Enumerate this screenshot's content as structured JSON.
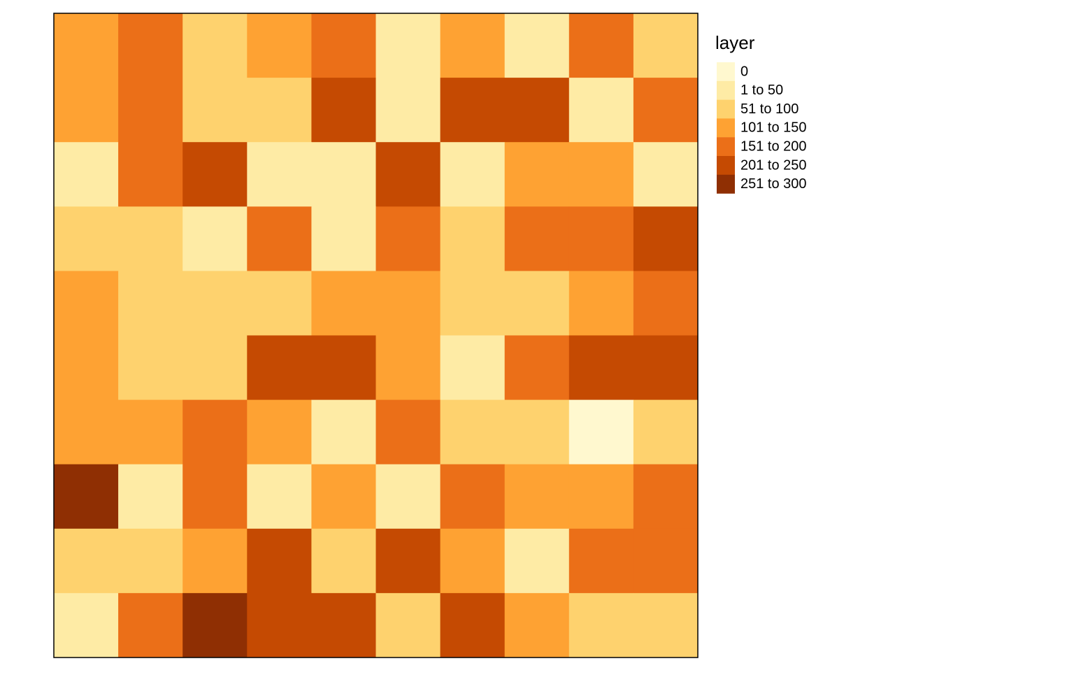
{
  "map": {
    "legend": {
      "title": "layer",
      "classes": [
        {
          "label": "0",
          "color": "#fff8cf"
        },
        {
          "label": "1 to 50",
          "color": "#feeba5"
        },
        {
          "label": "51 to 100",
          "color": "#fed26e"
        },
        {
          "label": "101 to 150",
          "color": "#fea233"
        },
        {
          "label": "151 to 200",
          "color": "#eb6f18"
        },
        {
          "label": "201 to 250",
          "color": "#c54a02"
        },
        {
          "label": "251 to 300",
          "color": "#8f2f03"
        }
      ]
    },
    "grid": [
      [
        3,
        4,
        2,
        3,
        4,
        1,
        3,
        1,
        4,
        2
      ],
      [
        3,
        4,
        2,
        2,
        5,
        1,
        5,
        5,
        1,
        4
      ],
      [
        1,
        4,
        5,
        1,
        1,
        5,
        1,
        3,
        3,
        1
      ],
      [
        2,
        2,
        1,
        4,
        1,
        4,
        2,
        4,
        4,
        5
      ],
      [
        3,
        2,
        2,
        2,
        3,
        3,
        2,
        2,
        3,
        4
      ],
      [
        3,
        2,
        2,
        5,
        5,
        3,
        1,
        4,
        5,
        5
      ],
      [
        3,
        3,
        4,
        3,
        1,
        4,
        2,
        2,
        0,
        2
      ],
      [
        6,
        1,
        4,
        1,
        3,
        1,
        4,
        3,
        3,
        4
      ],
      [
        2,
        2,
        3,
        5,
        2,
        5,
        3,
        1,
        4,
        4
      ],
      [
        1,
        4,
        6,
        5,
        5,
        2,
        5,
        3,
        2,
        2
      ]
    ]
  }
}
